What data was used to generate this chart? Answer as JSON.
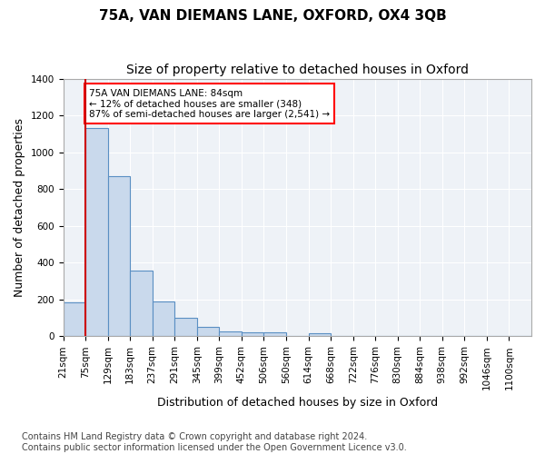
{
  "title": "75A, VAN DIEMANS LANE, OXFORD, OX4 3QB",
  "subtitle": "Size of property relative to detached houses in Oxford",
  "xlabel": "Distribution of detached houses by size in Oxford",
  "ylabel": "Number of detached properties",
  "bin_labels": [
    "21sqm",
    "75sqm",
    "129sqm",
    "183sqm",
    "237sqm",
    "291sqm",
    "345sqm",
    "399sqm",
    "452sqm",
    "506sqm",
    "560sqm",
    "614sqm",
    "668sqm",
    "722sqm",
    "776sqm",
    "830sqm",
    "884sqm",
    "938sqm",
    "992sqm",
    "1046sqm",
    "1100sqm"
  ],
  "bar_values": [
    185,
    1130,
    870,
    355,
    190,
    100,
    50,
    25,
    20,
    20,
    0,
    15,
    0,
    0,
    0,
    0,
    0,
    0,
    0,
    0,
    0
  ],
  "bar_color": "#c9d9ec",
  "bar_edge_color": "#5a8fc3",
  "red_line_bin_index": 1,
  "annotation_text": "75A VAN DIEMANS LANE: 84sqm\n← 12% of detached houses are smaller (348)\n87% of semi-detached houses are larger (2,541) →",
  "annotation_box_color": "white",
  "annotation_box_edge_color": "red",
  "red_line_color": "#cc0000",
  "ylim": [
    0,
    1400
  ],
  "yticks": [
    0,
    200,
    400,
    600,
    800,
    1000,
    1200,
    1400
  ],
  "background_color": "#eef2f7",
  "footer_text": "Contains HM Land Registry data © Crown copyright and database right 2024.\nContains public sector information licensed under the Open Government Licence v3.0.",
  "title_fontsize": 11,
  "subtitle_fontsize": 10,
  "axis_label_fontsize": 9,
  "tick_fontsize": 7.5,
  "footer_fontsize": 7
}
